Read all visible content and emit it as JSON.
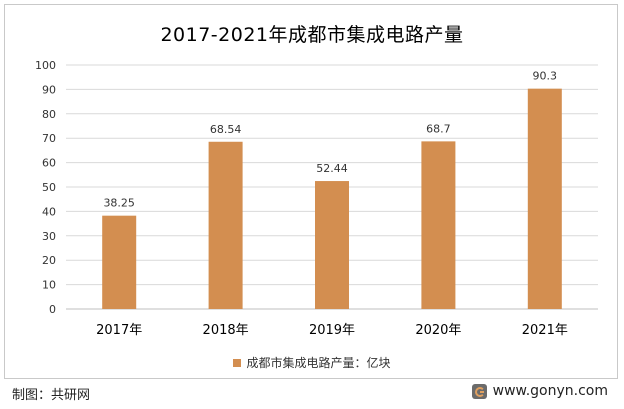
{
  "chart_data": {
    "type": "bar",
    "title": "2017-2021年成都市集成电路产量",
    "categories": [
      "2017年",
      "2018年",
      "2019年",
      "2020年",
      "2021年"
    ],
    "series": [
      {
        "name": "成都市集成电路产量：亿块",
        "values": [
          38.25,
          68.54,
          52.44,
          68.7,
          90.3
        ],
        "color": "#D38E50"
      }
    ],
    "data_labels": [
      "38.25",
      "68.54",
      "52.44",
      "68.7",
      "90.3"
    ],
    "ylim": [
      0,
      100
    ],
    "yticks": [
      0,
      10,
      20,
      30,
      40,
      50,
      60,
      70,
      80,
      90,
      100
    ],
    "grid": true,
    "legend": "bottom"
  },
  "footer": {
    "source": "制图：共研网",
    "website": "www.gonyn.com",
    "logo_icon": "gonyn-logo-icon"
  }
}
